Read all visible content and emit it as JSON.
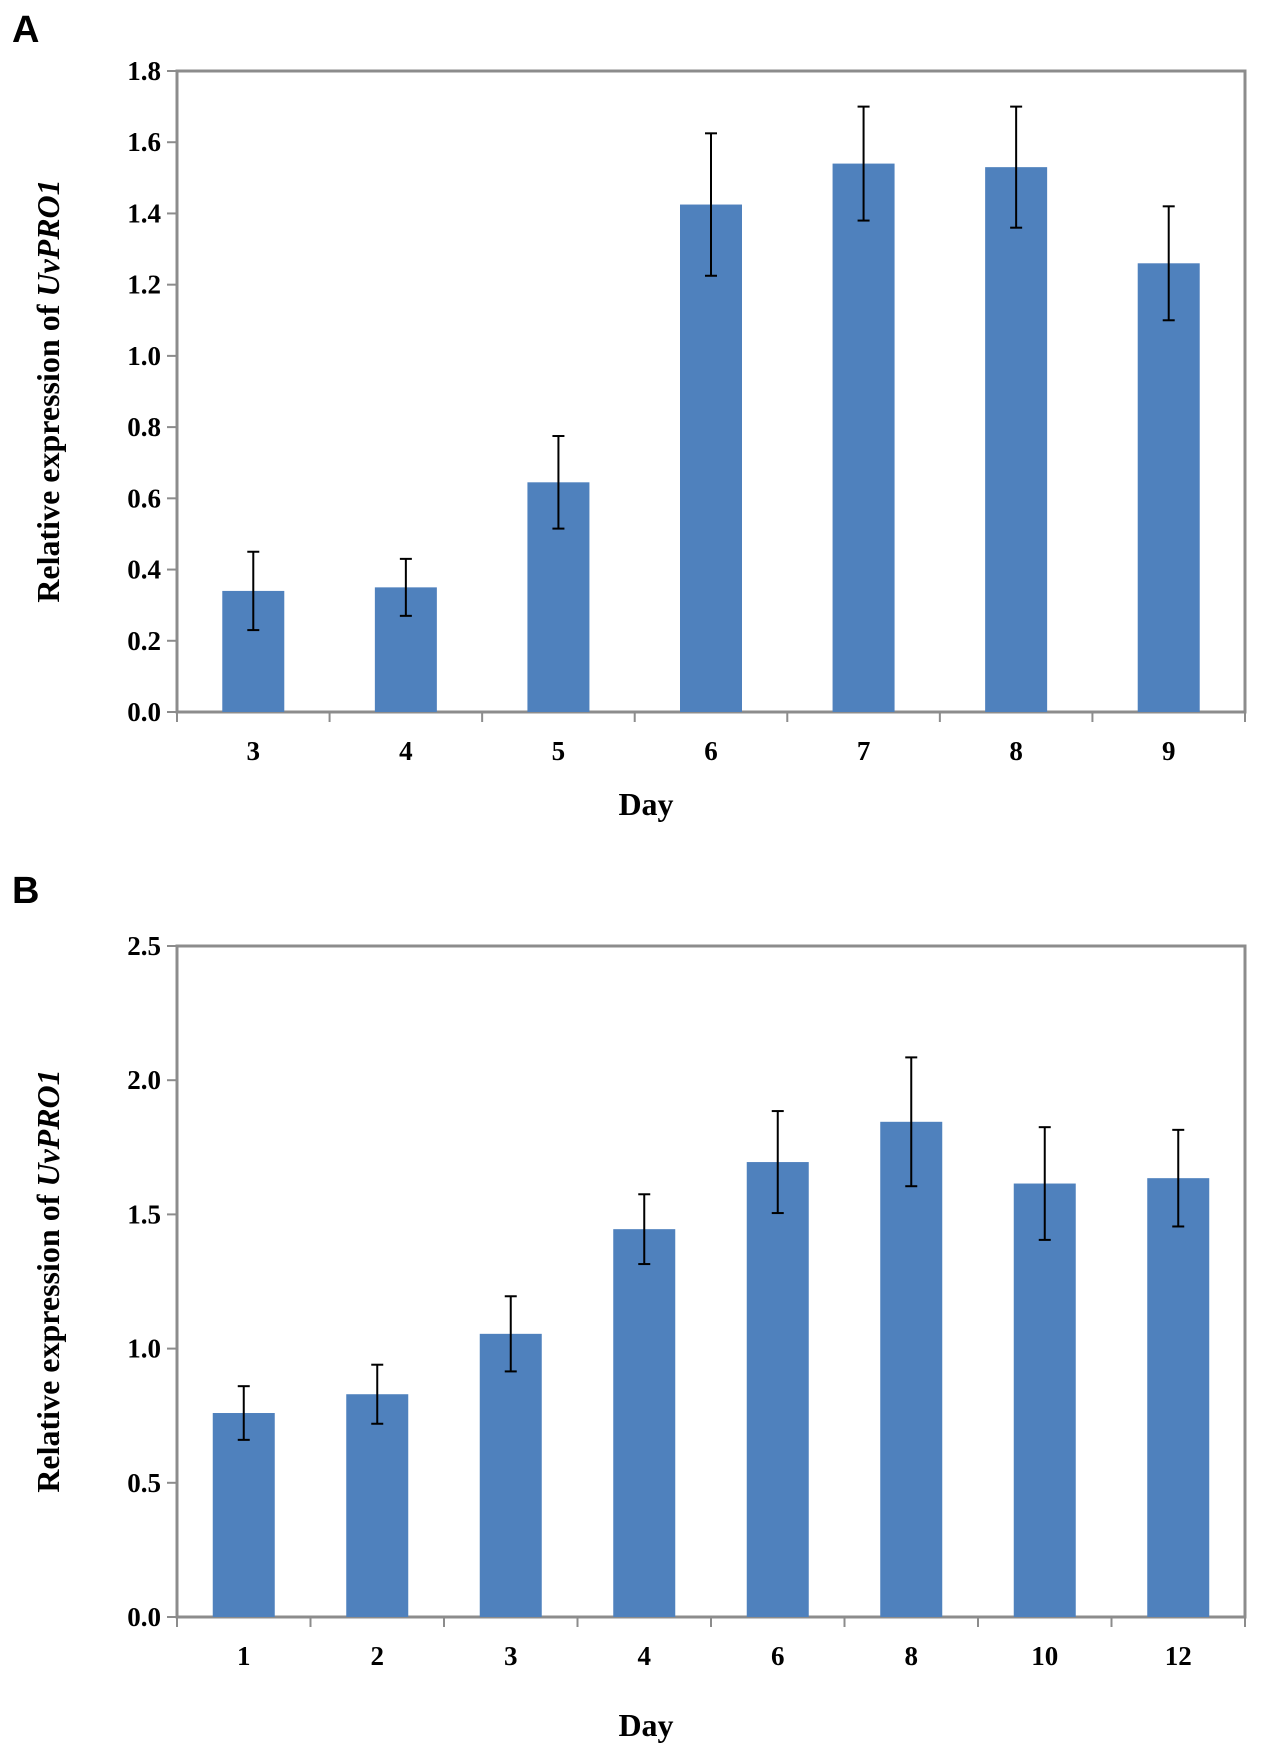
{
  "chart_data": [
    {
      "type": "bar",
      "panel": "A",
      "title": "",
      "xlabel": "Day",
      "ylabel_prefix": "Relative expression of ",
      "ylabel_gene": "UvPRO1",
      "categories": [
        "3",
        "4",
        "5",
        "6",
        "7",
        "8",
        "9"
      ],
      "values": [
        0.34,
        0.35,
        0.645,
        1.425,
        1.54,
        1.53,
        1.26
      ],
      "errors": [
        0.11,
        0.08,
        0.13,
        0.2,
        0.16,
        0.17,
        0.16
      ],
      "ylim": [
        0,
        1.8
      ],
      "yticks": [
        0.0,
        0.2,
        0.4,
        0.6,
        0.8,
        1.0,
        1.2,
        1.4,
        1.6,
        1.8
      ],
      "ytick_labels": [
        "0.0",
        "0.2",
        "0.4",
        "0.6",
        "0.8",
        "1.0",
        "1.2",
        "1.4",
        "1.6",
        "1.8"
      ],
      "grid": false,
      "bar_color": "#4f81bd"
    },
    {
      "type": "bar",
      "panel": "B",
      "title": "",
      "xlabel": "Day",
      "ylabel_prefix": "Relative expression of ",
      "ylabel_gene": "UvPRO1",
      "categories": [
        "1",
        "2",
        "3",
        "4",
        "6",
        "8",
        "10",
        "12"
      ],
      "values": [
        0.76,
        0.83,
        1.055,
        1.445,
        1.695,
        1.845,
        1.615,
        1.635
      ],
      "errors": [
        0.1,
        0.11,
        0.14,
        0.13,
        0.19,
        0.24,
        0.21,
        0.18
      ],
      "ylim": [
        0,
        2.5
      ],
      "yticks": [
        0.0,
        0.5,
        1.0,
        1.5,
        2.0,
        2.5
      ],
      "ytick_labels": [
        "0.0",
        "0.5",
        "1.0",
        "1.5",
        "2.0",
        "2.5"
      ],
      "grid": false,
      "bar_color": "#4f81bd"
    }
  ]
}
